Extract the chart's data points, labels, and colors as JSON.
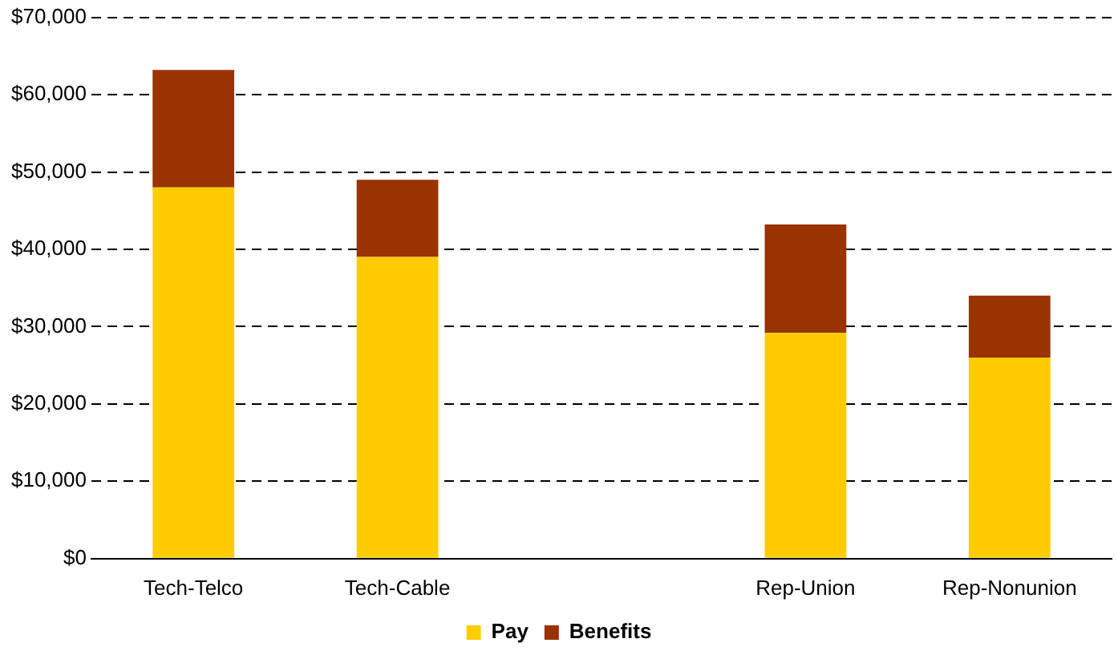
{
  "chart_data": {
    "type": "bar",
    "stacked": true,
    "categories": [
      "Tech-Telco",
      "Tech-Cable",
      null,
      "Rep-Union",
      "Rep-Nonunion"
    ],
    "series": [
      {
        "name": "Pay",
        "color": "#ffcc00",
        "values": [
          48000,
          39000,
          null,
          29200,
          26000
        ]
      },
      {
        "name": "Benefits",
        "color": "#993300",
        "values": [
          15200,
          10000,
          null,
          14000,
          8000
        ]
      }
    ],
    "ylim": [
      0,
      70000
    ],
    "yticks": [
      {
        "value": 0,
        "label": "$0"
      },
      {
        "value": 10000,
        "label": "$10,000"
      },
      {
        "value": 20000,
        "label": "$20,000"
      },
      {
        "value": 30000,
        "label": "$30,000"
      },
      {
        "value": 40000,
        "label": "$40,000"
      },
      {
        "value": 50000,
        "label": "$50,000"
      },
      {
        "value": 60000,
        "label": "$60,000"
      },
      {
        "value": 70000,
        "label": "$70,000"
      }
    ],
    "grid": "y",
    "legend": "bottom"
  }
}
